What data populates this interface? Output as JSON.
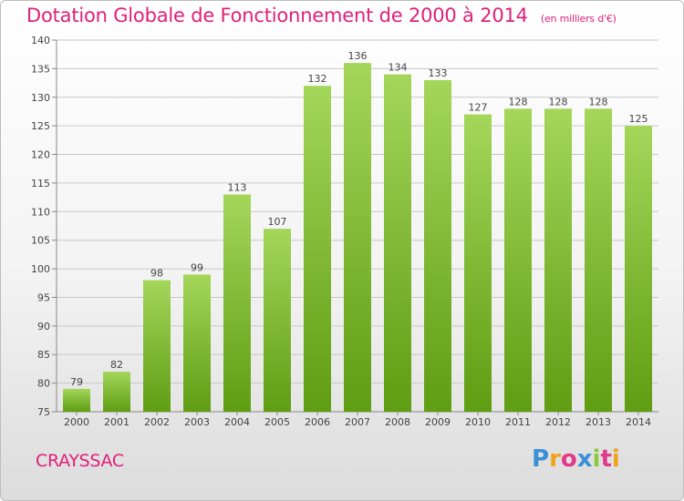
{
  "header": {
    "title": "Dotation Globale de Fonctionnement de 2000 à 2014",
    "subtitle": "(en milliers d'€)"
  },
  "footer": {
    "commune": "CRAYSSAC",
    "brand": "Proxiti"
  },
  "colors": {
    "title": "#e0207a",
    "bar_top": "#a4d65a",
    "bar_bottom": "#5f9d12",
    "grid": "#c8c8c8",
    "text": "#444444"
  },
  "chart_data": {
    "type": "bar",
    "title": "Dotation Globale de Fonctionnement de 2000 à 2014",
    "subtitle": "(en milliers d'€)",
    "categories": [
      "2000",
      "2001",
      "2002",
      "2003",
      "2004",
      "2005",
      "2006",
      "2007",
      "2008",
      "2009",
      "2010",
      "2011",
      "2012",
      "2013",
      "2014"
    ],
    "values": [
      79,
      82,
      98,
      99,
      113,
      107,
      132,
      136,
      134,
      133,
      127,
      128,
      128,
      128,
      125
    ],
    "data_labels": [
      "79",
      "82",
      "98",
      "99",
      "113",
      "107",
      "132",
      "136",
      "134",
      "133",
      "127",
      "128",
      "128",
      "128",
      "125"
    ],
    "yticks": [
      75,
      80,
      85,
      90,
      95,
      100,
      105,
      110,
      115,
      120,
      125,
      130,
      135,
      140
    ],
    "ylim": [
      75,
      140
    ],
    "xlabel": "",
    "ylabel": "",
    "grid": true
  }
}
